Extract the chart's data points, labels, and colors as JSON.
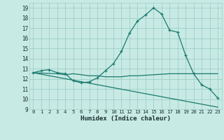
{
  "xlabel": "Humidex (Indice chaleur)",
  "xlim": [
    -0.5,
    23.5
  ],
  "ylim": [
    9,
    19.5
  ],
  "xticks": [
    0,
    1,
    2,
    3,
    4,
    5,
    6,
    7,
    8,
    9,
    10,
    11,
    12,
    13,
    14,
    15,
    16,
    17,
    18,
    19,
    20,
    21,
    22,
    23
  ],
  "yticks": [
    9,
    10,
    11,
    12,
    13,
    14,
    15,
    16,
    17,
    18,
    19
  ],
  "bg_color": "#c8eae4",
  "grid_color": "#9dcfc7",
  "line_color": "#1a7a6e",
  "lines": [
    {
      "x": [
        0,
        1,
        2,
        3,
        4,
        5,
        6,
        7,
        8,
        9,
        10,
        11,
        12,
        13,
        14,
        15,
        16,
        17,
        18,
        19,
        20,
        21,
        22,
        23
      ],
      "y": [
        12.6,
        12.8,
        12.9,
        12.6,
        12.5,
        11.8,
        11.6,
        11.7,
        12.1,
        12.8,
        13.5,
        14.7,
        16.5,
        17.7,
        18.3,
        19.0,
        18.4,
        16.8,
        16.6,
        14.3,
        12.5,
        11.4,
        11.0,
        10.1
      ],
      "marker": "+"
    },
    {
      "x": [
        0,
        3,
        4,
        5,
        6,
        7,
        8,
        9,
        10,
        11,
        12,
        13,
        14,
        15,
        16,
        17,
        18,
        19,
        20,
        21,
        22,
        23
      ],
      "y": [
        12.6,
        12.5,
        12.4,
        12.5,
        12.4,
        12.3,
        12.3,
        12.2,
        12.2,
        12.2,
        12.3,
        12.3,
        12.35,
        12.4,
        12.45,
        12.5,
        12.5,
        12.5,
        12.5,
        12.5,
        12.5,
        12.5
      ],
      "marker": null
    },
    {
      "x": [
        0,
        23
      ],
      "y": [
        12.6,
        9.2
      ],
      "marker": null
    }
  ]
}
